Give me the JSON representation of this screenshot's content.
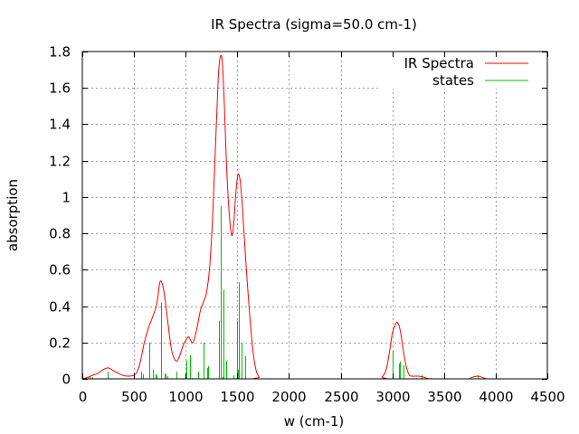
{
  "chart_data": {
    "type": "line",
    "title": "IR Spectra (sigma=50.0 cm-1)",
    "xlabel": "w (cm-1)",
    "ylabel": "absorption",
    "xlim": [
      0,
      4500
    ],
    "ylim": [
      0,
      1.8
    ],
    "xticks": [
      "0",
      "500",
      "1000",
      "1500",
      "2000",
      "2500",
      "3000",
      "3500",
      "4000",
      "4500"
    ],
    "yticks": [
      "0",
      "0.2",
      "0.4",
      "0.6",
      "0.8",
      "1",
      "1.2",
      "1.4",
      "1.6",
      "1.8"
    ],
    "grid": true,
    "legend_position": "top-right",
    "series": [
      {
        "name": "IR Spectra",
        "color": "#ff0000",
        "style": "line",
        "points": [
          [
            0,
            0
          ],
          [
            50,
            0.008
          ],
          [
            100,
            0.02
          ],
          [
            150,
            0.03
          ],
          [
            200,
            0.05
          ],
          [
            250,
            0.06
          ],
          [
            300,
            0.045
          ],
          [
            350,
            0.03
          ],
          [
            400,
            0.018
          ],
          [
            450,
            0.015
          ],
          [
            500,
            0.02
          ],
          [
            530,
            0.04
          ],
          [
            560,
            0.09
          ],
          [
            600,
            0.2
          ],
          [
            640,
            0.28
          ],
          [
            680,
            0.34
          ],
          [
            720,
            0.41
          ],
          [
            750,
            0.53
          ],
          [
            775,
            0.52
          ],
          [
            800,
            0.44
          ],
          [
            830,
            0.3
          ],
          [
            860,
            0.17
          ],
          [
            890,
            0.11
          ],
          [
            920,
            0.1
          ],
          [
            950,
            0.14
          ],
          [
            980,
            0.19
          ],
          [
            1010,
            0.22
          ],
          [
            1030,
            0.23
          ],
          [
            1060,
            0.2
          ],
          [
            1080,
            0.21
          ],
          [
            1110,
            0.28
          ],
          [
            1140,
            0.37
          ],
          [
            1170,
            0.42
          ],
          [
            1200,
            0.47
          ],
          [
            1230,
            0.6
          ],
          [
            1260,
            0.88
          ],
          [
            1290,
            1.3
          ],
          [
            1315,
            1.65
          ],
          [
            1335,
            1.77
          ],
          [
            1355,
            1.74
          ],
          [
            1375,
            1.5
          ],
          [
            1395,
            1.18
          ],
          [
            1420,
            0.92
          ],
          [
            1445,
            0.79
          ],
          [
            1465,
            0.85
          ],
          [
            1485,
            1.02
          ],
          [
            1505,
            1.12
          ],
          [
            1525,
            1.1
          ],
          [
            1545,
            0.98
          ],
          [
            1565,
            0.8
          ],
          [
            1590,
            0.58
          ],
          [
            1620,
            0.35
          ],
          [
            1650,
            0.16
          ],
          [
            1680,
            0.05
          ],
          [
            1710,
            0.01
          ],
          [
            1750,
            0
          ],
          [
            2850,
            0
          ],
          [
            2900,
            0.01
          ],
          [
            2940,
            0.05
          ],
          [
            2970,
            0.14
          ],
          [
            3000,
            0.25
          ],
          [
            3030,
            0.3
          ],
          [
            3050,
            0.31
          ],
          [
            3075,
            0.27
          ],
          [
            3100,
            0.18
          ],
          [
            3130,
            0.08
          ],
          [
            3160,
            0.025
          ],
          [
            3190,
            0.015
          ],
          [
            3250,
            0.015
          ],
          [
            3300,
            0.01
          ],
          [
            3340,
            0.002
          ],
          [
            3400,
            0
          ],
          [
            3720,
            0
          ],
          [
            3760,
            0.006
          ],
          [
            3800,
            0.013
          ],
          [
            3830,
            0.015
          ],
          [
            3860,
            0.01
          ],
          [
            3900,
            0.003
          ],
          [
            3950,
            0
          ],
          [
            4500,
            0
          ]
        ]
      },
      {
        "name": "states",
        "color": "#00c000",
        "style": "impulses",
        "points": [
          [
            30,
            0.005
          ],
          [
            60,
            0.01
          ],
          [
            80,
            0.01
          ],
          [
            100,
            0.008
          ],
          [
            248,
            0.04
          ],
          [
            572,
            0.04
          ],
          [
            590,
            0.025
          ],
          [
            650,
            0.2
          ],
          [
            685,
            0.05
          ],
          [
            712,
            0.025
          ],
          [
            720,
            0.02
          ],
          [
            765,
            0.42
          ],
          [
            793,
            0.03
          ],
          [
            800,
            0.03
          ],
          [
            807,
            0.025
          ],
          [
            825,
            0.015
          ],
          [
            913,
            0.04
          ],
          [
            1009,
            0.1
          ],
          [
            1044,
            0.13
          ],
          [
            1062,
            0.005
          ],
          [
            1124,
            0.04
          ],
          [
            1176,
            0.2
          ],
          [
            1211,
            0.06
          ],
          [
            1220,
            0.07
          ],
          [
            1325,
            0.32
          ],
          [
            1342,
            0.95
          ],
          [
            1360,
            0.01
          ],
          [
            1369,
            0.49
          ],
          [
            1395,
            0.1
          ],
          [
            1465,
            0.02
          ],
          [
            1490,
            0.005
          ],
          [
            1500,
            0.32
          ],
          [
            1509,
            0.05
          ],
          [
            1518,
            0.53
          ],
          [
            1544,
            0.2
          ],
          [
            1579,
            0.125
          ],
          [
            3006,
            0.155
          ],
          [
            3067,
            0.085
          ],
          [
            3076,
            0.095
          ],
          [
            3111,
            0.075
          ],
          [
            3233,
            0.005
          ],
          [
            3286,
            0.02
          ],
          [
            3823,
            0.02
          ]
        ]
      }
    ]
  }
}
